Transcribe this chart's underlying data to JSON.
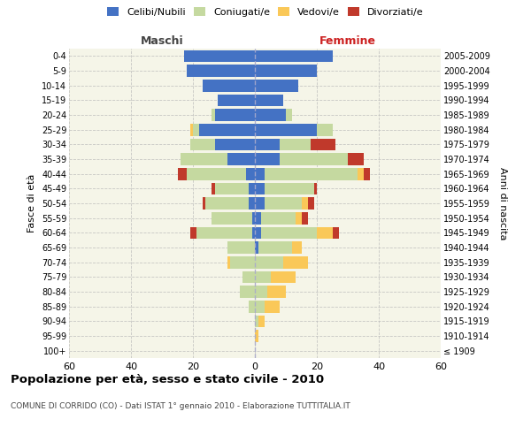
{
  "age_groups": [
    "100+",
    "95-99",
    "90-94",
    "85-89",
    "80-84",
    "75-79",
    "70-74",
    "65-69",
    "60-64",
    "55-59",
    "50-54",
    "45-49",
    "40-44",
    "35-39",
    "30-34",
    "25-29",
    "20-24",
    "15-19",
    "10-14",
    "5-9",
    "0-4"
  ],
  "birth_years": [
    "≤ 1909",
    "1910-1914",
    "1915-1919",
    "1920-1924",
    "1925-1929",
    "1930-1934",
    "1935-1939",
    "1940-1944",
    "1945-1949",
    "1950-1954",
    "1955-1959",
    "1960-1964",
    "1965-1969",
    "1970-1974",
    "1975-1979",
    "1980-1984",
    "1985-1989",
    "1990-1994",
    "1995-1999",
    "2000-2004",
    "2005-2009"
  ],
  "male": {
    "celibi": [
      0,
      0,
      0,
      0,
      0,
      0,
      0,
      0,
      1,
      1,
      2,
      2,
      3,
      9,
      13,
      18,
      13,
      12,
      17,
      22,
      23
    ],
    "coniugati": [
      0,
      0,
      0,
      2,
      5,
      4,
      8,
      9,
      18,
      13,
      14,
      11,
      19,
      15,
      8,
      2,
      1,
      0,
      0,
      0,
      0
    ],
    "vedovi": [
      0,
      0,
      0,
      0,
      0,
      0,
      1,
      0,
      0,
      0,
      0,
      0,
      0,
      0,
      0,
      1,
      0,
      0,
      0,
      0,
      0
    ],
    "divorziati": [
      0,
      0,
      0,
      0,
      0,
      0,
      0,
      0,
      2,
      0,
      1,
      1,
      3,
      0,
      0,
      0,
      0,
      0,
      0,
      0,
      0
    ]
  },
  "female": {
    "nubili": [
      0,
      0,
      0,
      0,
      0,
      0,
      0,
      1,
      2,
      2,
      3,
      3,
      3,
      8,
      8,
      20,
      10,
      9,
      14,
      20,
      25
    ],
    "coniugate": [
      0,
      0,
      1,
      3,
      4,
      5,
      9,
      11,
      18,
      11,
      12,
      16,
      30,
      22,
      10,
      5,
      2,
      0,
      0,
      0,
      0
    ],
    "vedove": [
      0,
      1,
      2,
      5,
      6,
      8,
      8,
      3,
      5,
      2,
      2,
      0,
      2,
      0,
      0,
      0,
      0,
      0,
      0,
      0,
      0
    ],
    "divorziate": [
      0,
      0,
      0,
      0,
      0,
      0,
      0,
      0,
      2,
      2,
      2,
      1,
      2,
      5,
      8,
      0,
      0,
      0,
      0,
      0,
      0
    ]
  },
  "colors": {
    "celibi": "#4472C4",
    "coniugati": "#C5D9A0",
    "vedovi": "#FAC858",
    "divorziati": "#C0392B"
  },
  "xlim": 60,
  "title": "Popolazione per età, sesso e stato civile - 2010",
  "subtitle": "COMUNE DI CORRIDO (CO) - Dati ISTAT 1° gennaio 2010 - Elaborazione TUTTITALIA.IT",
  "ylabel_left": "Fasce di età",
  "ylabel_right": "Anni di nascita",
  "xlabel_left": "Maschi",
  "xlabel_right": "Femmine",
  "background": "#f5f5e8",
  "grid_color": "#bbbbbb"
}
